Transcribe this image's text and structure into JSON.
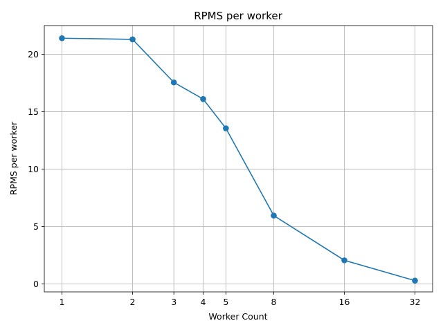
{
  "chart_data": {
    "type": "line",
    "title": "RPMS per worker",
    "xlabel": "Worker Count",
    "ylabel": "RPMS per worker",
    "x_scale": "log2",
    "x": [
      1,
      2,
      3,
      4,
      5,
      8,
      16,
      32
    ],
    "x_tick_labels": [
      "1",
      "2",
      "3",
      "4",
      "5",
      "8",
      "16",
      "32"
    ],
    "y_ticks": [
      0,
      5,
      10,
      15,
      20
    ],
    "y_tick_labels": [
      "0",
      "5",
      "10",
      "15",
      "20"
    ],
    "ylim": [
      -0.7,
      22.5
    ],
    "grid": true,
    "series": [
      {
        "color": "#1f77b4",
        "marker": "circle",
        "values": [
          21.4,
          21.3,
          17.55,
          16.1,
          13.55,
          5.95,
          2.05,
          0.28
        ]
      }
    ]
  }
}
